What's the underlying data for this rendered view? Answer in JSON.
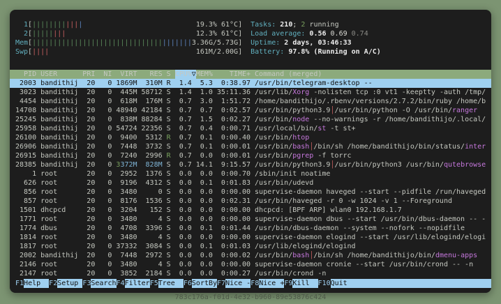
{
  "caption": "783c176a-f01d-4e32-b960-89e53876c424",
  "colors": {
    "wallpaper": "#7c9472",
    "terminal_bg": "#1d1d1d",
    "foreground": "#c5c8c0",
    "selection_bg": "#9fd0f0",
    "table_header_bg": "#8caa7c",
    "cyan_label": "#61afbe",
    "green": "#79a05e",
    "red": "#c65f5f",
    "blue": "#5d83bd",
    "magenta": "#c678dd"
  },
  "header": {
    "meters": [
      {
        "label": "  1",
        "value": "19.3% 61°C",
        "bars": [
          {
            "color": "green",
            "count": 8
          },
          {
            "color": "red",
            "count": 3
          },
          {
            "color": "blue",
            "count": 1
          }
        ]
      },
      {
        "label": "  2",
        "value": "12.3% 61°C",
        "bars": [
          {
            "color": "green",
            "count": 5
          },
          {
            "color": "red",
            "count": 3
          }
        ]
      },
      {
        "label": "Mem",
        "value": "3.36G/5.73G",
        "bars": [
          {
            "color": "green",
            "count": 31
          },
          {
            "color": "blue",
            "count": 7
          }
        ]
      },
      {
        "label": "Swp",
        "value": "161M/2.00G",
        "bars": [
          {
            "color": "red",
            "count": 4
          }
        ]
      }
    ],
    "stats": [
      {
        "name": "tasks",
        "segments": [
          [
            "Tasks: ",
            "cyan"
          ],
          [
            "210",
            "bold"
          ],
          [
            "; ",
            "fg"
          ],
          [
            "2",
            "green"
          ],
          [
            " running",
            "fg"
          ]
        ]
      },
      {
        "name": "load-average",
        "segments": [
          [
            "Load average: ",
            "cyan"
          ],
          [
            "0.56 ",
            "bold"
          ],
          [
            "0.69 ",
            "white"
          ],
          [
            "0.74",
            "dim"
          ]
        ]
      },
      {
        "name": "uptime",
        "segments": [
          [
            "Uptime: ",
            "cyan"
          ],
          [
            "2 days, 03:46:33",
            "bold"
          ]
        ]
      },
      {
        "name": "battery",
        "segments": [
          [
            "Battery: ",
            "cyan"
          ],
          [
            "97.8% (Running on A/C)",
            "bold"
          ]
        ]
      }
    ]
  },
  "table": {
    "sort_key": "cpu",
    "sort_indicator": "▽",
    "columns": [
      {
        "key": "pid",
        "label": "PID",
        "width": 5,
        "align": "right"
      },
      {
        "key": "user",
        "label": "USER",
        "width": 9,
        "align": "left"
      },
      {
        "key": "pri",
        "label": "PRI",
        "width": 3,
        "align": "right"
      },
      {
        "key": "ni",
        "label": "NI",
        "width": 3,
        "align": "right"
      },
      {
        "key": "virt",
        "label": "VIRT",
        "width": 5,
        "align": "right"
      },
      {
        "key": "res",
        "label": "RES",
        "width": 5,
        "align": "right"
      },
      {
        "key": "s",
        "label": "S",
        "width": 1,
        "align": "left"
      },
      {
        "key": "cpu",
        "label": "CPU%",
        "width": 4,
        "align": "right"
      },
      {
        "key": "mem",
        "label": "MEM%",
        "width": 4,
        "align": "right"
      },
      {
        "key": "time",
        "label": "TIME+",
        "width": 8,
        "align": "right"
      },
      {
        "key": "cmd",
        "label": "Command (merged)",
        "width": 0,
        "align": "left"
      }
    ],
    "rows": [
      {
        "selected": true,
        "cells": {
          "pid": "2003",
          "user": "bandithij",
          "pri": "20",
          "ni": "0",
          "virt": "1869M",
          "res": "310M",
          "s": "R",
          "cpu": "1.4",
          "mem": "5.3",
          "time": "0:38.97",
          "cmd": [
            [
              "/usr/bin/telegram-desktop --",
              "fg"
            ]
          ]
        }
      },
      {
        "cells": {
          "pid": "3023",
          "user": "bandithij",
          "pri": "20",
          "ni": "0",
          "virt": "445M",
          "res": "58712",
          "s": "S",
          "cpu": "1.4",
          "mem": "1.0",
          "time": "35:11.36",
          "cmd": [
            [
              "/usr/lib/",
              "fg"
            ],
            [
              "Xorg",
              "mag"
            ],
            [
              " -nolisten tcp :0 vt1 -keeptty -auth /tmp/",
              "fg"
            ]
          ]
        }
      },
      {
        "cells": {
          "pid": "4454",
          "user": "bandithij",
          "pri": "20",
          "ni": "0",
          "virt": "618M",
          "res": "176M",
          "s": "S",
          "cpu": "0.7",
          "mem": "3.0",
          "time": "1:51.72",
          "cmd": [
            [
              "/home/bandithijo/.rbenv/versions/2.7.2/bin/ruby /home/b",
              "fg"
            ]
          ]
        }
      },
      {
        "cells": {
          "pid": "14708",
          "user": "bandithij",
          "pri": "20",
          "ni": "0",
          "virt": "48940",
          "res": "42184",
          "s": "S",
          "cpu": "0.7",
          "mem": "0.7",
          "time": "0:02.57",
          "cmd": [
            [
              "/usr/bin/python3.9",
              "fg"
            ],
            [
              "│",
              "red"
            ],
            [
              "/usr/bin/python -O /usr/bin/",
              "fg"
            ],
            [
              "ranger",
              "mag"
            ]
          ]
        }
      },
      {
        "cells": {
          "pid": "25245",
          "user": "bandithij",
          "pri": "20",
          "ni": "0",
          "virt": "838M",
          "res": "88284",
          "s": "S",
          "cpu": "0.7",
          "mem": "1.5",
          "time": "0:02.27",
          "cmd": [
            [
              "/usr/bin/",
              "fg"
            ],
            [
              "node",
              "mag"
            ],
            [
              " --no-warnings -r /home/bandithijo/.local/",
              "fg"
            ]
          ]
        }
      },
      {
        "cells": {
          "pid": "25958",
          "user": "bandithij",
          "pri": "20",
          "ni": "0",
          "virt": "54724",
          "res": "22356",
          "s": "S",
          "cpu": "0.7",
          "mem": "0.4",
          "time": "0:00.71",
          "cmd": [
            [
              "/usr/local/bin/",
              "fg"
            ],
            [
              "st",
              "mag"
            ],
            [
              " -t st+",
              "fg"
            ]
          ]
        }
      },
      {
        "cells": {
          "pid": "26100",
          "user": "bandithij",
          "pri": "20",
          "ni": "0",
          "virt": "9400",
          "res": "5312",
          "s": [
            [
              "R",
              "green"
            ]
          ],
          "cpu": "0.7",
          "mem": "0.1",
          "time": "0:00.40",
          "cmd": [
            [
              "/usr/bin/",
              "fg"
            ],
            [
              "htop",
              "mag"
            ]
          ]
        }
      },
      {
        "cells": {
          "pid": "26906",
          "user": "bandithij",
          "pri": "20",
          "ni": "0",
          "virt": "7448",
          "res": "3732",
          "s": "S",
          "cpu": "0.7",
          "mem": "0.1",
          "time": "0:00.01",
          "cmd": [
            [
              "/usr/bin/",
              "fg"
            ],
            [
              "bash",
              "mag"
            ],
            [
              "│",
              "red"
            ],
            [
              "/bin/sh /home/bandithijo/bin/status/",
              "fg"
            ],
            [
              "inter",
              "mag"
            ]
          ]
        }
      },
      {
        "cells": {
          "pid": "26915",
          "user": "bandithij",
          "pri": "20",
          "ni": "0",
          "virt": "7240",
          "res": "2996",
          "s": [
            [
              "R",
              "green"
            ]
          ],
          "cpu": "0.7",
          "mem": "0.0",
          "time": "0:00.01",
          "cmd": [
            [
              "/usr/bin/",
              "fg"
            ],
            [
              "pgrep",
              "mag"
            ],
            [
              " -f torrc",
              "fg"
            ]
          ]
        }
      },
      {
        "cells": {
          "pid": "28385",
          "user": "bandithij",
          "pri": "20",
          "ni": "0",
          "virt": [
            [
              "3",
              "green"
            ],
            [
              "372M",
              "cy"
            ]
          ],
          "res": [
            [
              "828M",
              "cy"
            ]
          ],
          "s": "S",
          "cpu": "0.7",
          "mem": "14.1",
          "time": "9:15.57",
          "cmd": [
            [
              "/usr/bin/python3.9",
              "fg"
            ],
            [
              "│",
              "red"
            ],
            [
              "/usr/bin/python3 /usr/bin/",
              "fg"
            ],
            [
              "qutebrowse",
              "mag"
            ]
          ]
        }
      },
      {
        "cells": {
          "pid": "1",
          "user": "root",
          "pri": "20",
          "ni": "0",
          "virt": "2952",
          "res": "1376",
          "s": "S",
          "cpu": "0.0",
          "mem": "0.0",
          "time": "0:00.70",
          "cmd": [
            [
              "/sbin/init noatime",
              "fg"
            ]
          ]
        }
      },
      {
        "cells": {
          "pid": "626",
          "user": "root",
          "pri": "20",
          "ni": "0",
          "virt": "9196",
          "res": "4312",
          "s": "S",
          "cpu": "0.0",
          "mem": "0.1",
          "time": "0:01.83",
          "cmd": [
            [
              "/usr/bin/udevd",
              "fg"
            ]
          ]
        }
      },
      {
        "cells": {
          "pid": "856",
          "user": "root",
          "pri": "20",
          "ni": "0",
          "virt": "3480",
          "res": "0",
          "s": "S",
          "cpu": "0.0",
          "mem": "0.0",
          "time": "0:00.00",
          "cmd": [
            [
              "supervise-daemon haveged --start --pidfile /run/haveged",
              "fg"
            ]
          ]
        }
      },
      {
        "cells": {
          "pid": "857",
          "user": "root",
          "pri": "20",
          "ni": "0",
          "virt": "8176",
          "res": "1536",
          "s": "S",
          "cpu": "0.0",
          "mem": "0.0",
          "time": "0:02.31",
          "cmd": [
            [
              "/usr/bin/haveged -r 0 -w 1024 -v 1 --Foreground",
              "fg"
            ]
          ]
        }
      },
      {
        "cells": {
          "pid": "1501",
          "user": "dhcpcd",
          "pri": "20",
          "ni": "0",
          "virt": "3204",
          "res": "152",
          "s": "S",
          "cpu": "0.0",
          "mem": "0.0",
          "time": "0:00.00",
          "cmd": [
            [
              "dhcpcd: [BPF ARP] wlan0 192.168.1.7",
              "fg"
            ]
          ]
        }
      },
      {
        "cells": {
          "pid": "1771",
          "user": "root",
          "pri": "20",
          "ni": "0",
          "virt": "3480",
          "res": "4",
          "s": "S",
          "cpu": "0.0",
          "mem": "0.0",
          "time": "0:00.00",
          "cmd": [
            [
              "supervise-daemon dbus --start /usr/bin/dbus-daemon -- -",
              "fg"
            ]
          ]
        }
      },
      {
        "cells": {
          "pid": "1774",
          "user": "dbus",
          "pri": "20",
          "ni": "0",
          "virt": "4708",
          "res": "3396",
          "s": "S",
          "cpu": "0.0",
          "mem": "0.1",
          "time": "0:01.44",
          "cmd": [
            [
              "/usr/bin/dbus-daemon --system --nofork --nopidfile",
              "fg"
            ]
          ]
        }
      },
      {
        "cells": {
          "pid": "1814",
          "user": "root",
          "pri": "20",
          "ni": "0",
          "virt": "3480",
          "res": "4",
          "s": "S",
          "cpu": "0.0",
          "mem": "0.0",
          "time": "0:00.00",
          "cmd": [
            [
              "supervise-daemon elogind --start /usr/lib/elogind/elogi",
              "fg"
            ]
          ]
        }
      },
      {
        "cells": {
          "pid": "1817",
          "user": "root",
          "pri": "20",
          "ni": "0",
          "virt": "37332",
          "res": "3084",
          "s": "S",
          "cpu": "0.0",
          "mem": "0.1",
          "time": "0:01.03",
          "cmd": [
            [
              "/usr/lib/elogind/elogind",
              "fg"
            ]
          ]
        }
      },
      {
        "cells": {
          "pid": "2002",
          "user": "bandithij",
          "pri": "20",
          "ni": "0",
          "virt": "7448",
          "res": "2972",
          "s": "S",
          "cpu": "0.0",
          "mem": "0.0",
          "time": "0:00.02",
          "cmd": [
            [
              "/usr/bin/",
              "fg"
            ],
            [
              "bash",
              "mag"
            ],
            [
              "│",
              "red"
            ],
            [
              "/bin/sh /home/bandithijo/bin/",
              "fg"
            ],
            [
              "dmenu-apps",
              "mag"
            ]
          ]
        }
      },
      {
        "cells": {
          "pid": "2146",
          "user": "root",
          "pri": "20",
          "ni": "0",
          "virt": "3480",
          "res": "4",
          "s": "S",
          "cpu": "0.0",
          "mem": "0.0",
          "time": "0:00.00",
          "cmd": [
            [
              "supervise-daemon cronie --start /usr/bin/crond -- -n",
              "fg"
            ]
          ]
        }
      },
      {
        "cells": {
          "pid": "2147",
          "user": "root",
          "pri": "20",
          "ni": "0",
          "virt": "3852",
          "res": "2184",
          "s": "S",
          "cpu": "0.0",
          "mem": "0.0",
          "time": "0:00.27",
          "cmd": [
            [
              "/usr/bin/crond -n",
              "fg"
            ]
          ]
        }
      }
    ]
  },
  "fnbar": {
    "items": [
      {
        "name": "help",
        "key": "F1",
        "label": "Help  "
      },
      {
        "name": "setup",
        "key": "F2",
        "label": "Setup "
      },
      {
        "name": "search",
        "key": "F3",
        "label": "Search"
      },
      {
        "name": "filter",
        "key": "F4",
        "label": "Filter"
      },
      {
        "name": "tree",
        "key": "F5",
        "label": "Tree  "
      },
      {
        "name": "sortby",
        "key": "F6",
        "label": "SortBy"
      },
      {
        "name": "nice-minus",
        "key": "F7",
        "label": "Nice -"
      },
      {
        "name": "nice-plus",
        "key": "F8",
        "label": "Nice +"
      },
      {
        "name": "kill",
        "key": "F9",
        "label": "Kill  "
      },
      {
        "name": "quit",
        "key": "F10",
        "label": "Quit  "
      }
    ]
  }
}
